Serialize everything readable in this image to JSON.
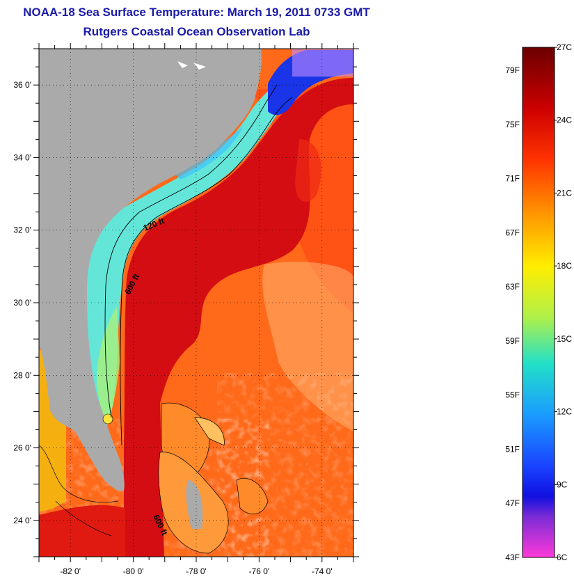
{
  "header": {
    "title": "NOAA-18 Sea Surface Temperature:  March 19, 2011 0733 GMT",
    "subtitle": "Rutgers Coastal Ocean Observation Lab"
  },
  "map": {
    "lat_range": [
      23,
      37
    ],
    "lon_range": [
      -83,
      -73
    ],
    "lat_labels": [
      "36 0'",
      "34 0'",
      "32 0'",
      "30 0'",
      "28 0'",
      "26 0'",
      "24 0'"
    ],
    "lon_labels": [
      "-82 0'",
      "-80 0'",
      "-78 0'",
      "-76 0'",
      "-74 0'"
    ],
    "contour_labels": [
      "120 ft",
      "600 ft",
      "600 ft"
    ],
    "colors": {
      "land": "#aaaaaa",
      "gulf_stream": "#d40d12",
      "shelf": "#63e6d8",
      "offshore": "#ff6a1a"
    }
  },
  "colorbar": {
    "fahrenheit": [
      "79F",
      "75F",
      "71F",
      "67F",
      "63F",
      "59F",
      "55F",
      "51F",
      "47F",
      "43F"
    ],
    "celsius": [
      "27C",
      "24C",
      "21C",
      "18C",
      "15C",
      "12C",
      "9C",
      "6C"
    ],
    "range_c": [
      6,
      27
    ]
  }
}
